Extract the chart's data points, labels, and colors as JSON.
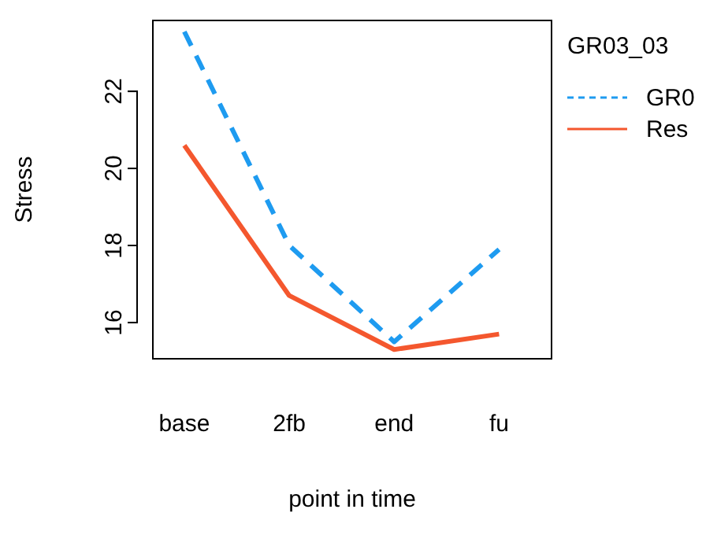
{
  "chart_data": {
    "type": "line",
    "xlabel": "point in time",
    "ylabel": "Stress",
    "legend_title": "GR03_03",
    "categories": [
      "base",
      "2fb",
      "end",
      "fu"
    ],
    "series": [
      {
        "name": "GR0",
        "color": "#1e9bf0",
        "line_style": "dashed",
        "values": [
          23.55,
          18.0,
          15.5,
          17.9
        ]
      },
      {
        "name": "Res",
        "color": "#f4572e",
        "line_style": "solid",
        "values": [
          20.6,
          16.7,
          15.3,
          15.7
        ]
      }
    ],
    "ylim": [
      15.06,
      23.84
    ],
    "yticks": [
      16,
      18,
      20,
      22
    ],
    "legend": "top right",
    "grid": false
  }
}
